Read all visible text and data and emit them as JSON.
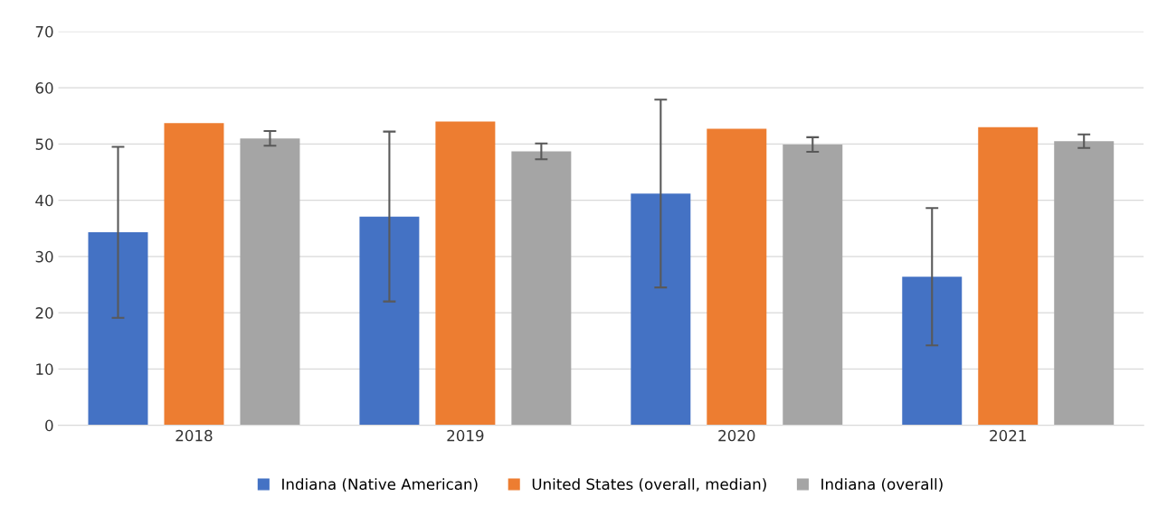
{
  "chart_data": {
    "type": "bar",
    "categories": [
      "2018",
      "2019",
      "2020",
      "2021"
    ],
    "series": [
      {
        "name": "Indiana (Native American)",
        "color": "#4472c4",
        "values": [
          34.3,
          37.1,
          41.2,
          26.4
        ],
        "errors": [
          15.2,
          15.1,
          16.7,
          12.2
        ]
      },
      {
        "name": "United States (overall, median)",
        "color": "#ed7d31",
        "values": [
          53.7,
          54.0,
          52.7,
          53.0
        ]
      },
      {
        "name": "Indiana (overall)",
        "color": "#a5a5a5",
        "values": [
          51.0,
          48.7,
          49.9,
          50.5
        ],
        "errors": [
          1.3,
          1.4,
          1.3,
          1.2
        ]
      }
    ],
    "ylim": [
      0,
      70
    ],
    "yticks": [
      0,
      10,
      20,
      30,
      40,
      50,
      60,
      70
    ],
    "grid": "y",
    "legend": "bottom"
  }
}
